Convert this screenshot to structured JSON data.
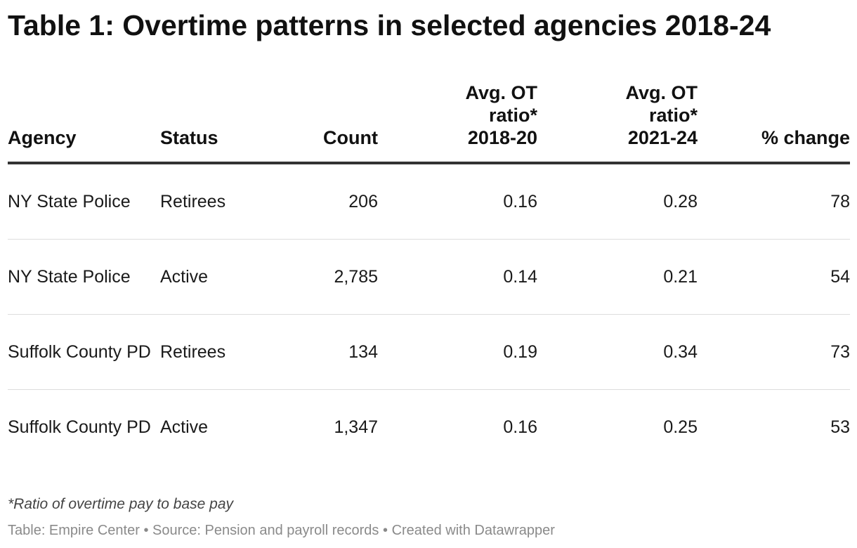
{
  "title": "Table 1: Overtime patterns in selected agencies 2018-24",
  "note": "*Ratio of overtime pay to base pay",
  "footer": {
    "table_credit": "Table: Empire Center",
    "source": "Source: Pension and payroll records",
    "created": "Created with Datawrapper",
    "separator": "•"
  },
  "chart_data": {
    "type": "table",
    "title": "Table 1: Overtime patterns in selected agencies 2018-24",
    "columns": [
      "Agency",
      "Status",
      "Count",
      "Avg. OT ratio* 2018-20",
      "Avg. OT ratio* 2021-24",
      "% change"
    ],
    "rows": [
      {
        "agency": "NY State Police",
        "status": "Retirees",
        "count": "206",
        "ratio_2018_20": "0.16",
        "ratio_2021_24": "0.28",
        "pct_change": "78"
      },
      {
        "agency": "NY State Police",
        "status": "Active",
        "count": "2,785",
        "ratio_2018_20": "0.14",
        "ratio_2021_24": "0.21",
        "pct_change": "54"
      },
      {
        "agency": "Suffolk County PD",
        "status": "Retirees",
        "count": "134",
        "ratio_2018_20": "0.19",
        "ratio_2021_24": "0.34",
        "pct_change": "73"
      },
      {
        "agency": "Suffolk County PD",
        "status": "Active",
        "count": "1,347",
        "ratio_2018_20": "0.16",
        "ratio_2021_24": "0.25",
        "pct_change": "53"
      }
    ]
  }
}
